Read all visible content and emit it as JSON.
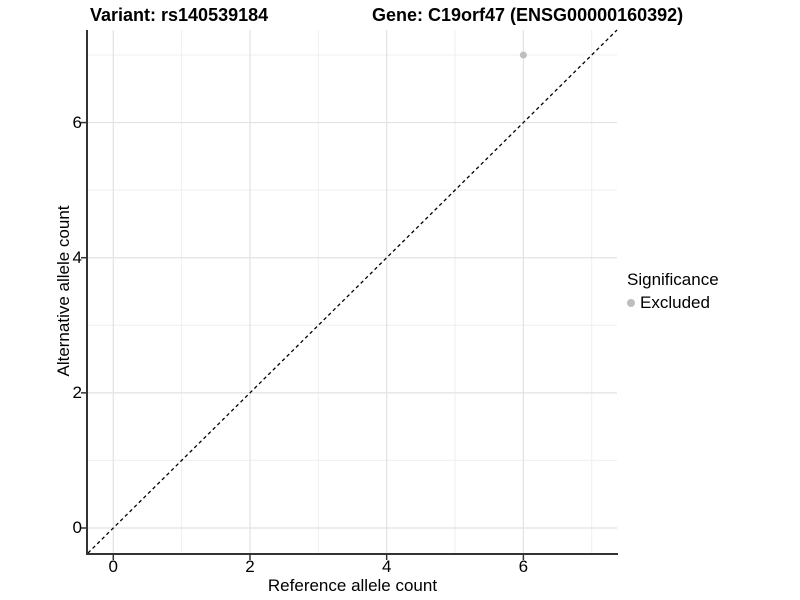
{
  "titles": {
    "variant": "Variant: rs140539184",
    "gene": "Gene: C19orf47 (ENSG00000160392)"
  },
  "chart_data": {
    "type": "scatter",
    "title": "Variant: rs140539184   Gene: C19orf47 (ENSG00000160392)",
    "xlabel": "Reference allele count",
    "ylabel": "Alternative allele count",
    "xlim": [
      -0.37,
      7.37
    ],
    "ylim": [
      -0.37,
      7.37
    ],
    "xticks": [
      0,
      2,
      4,
      6
    ],
    "yticks": [
      0,
      2,
      4,
      6
    ],
    "minor_gridlines_x": [
      1,
      3,
      5,
      7
    ],
    "minor_gridlines_y": [
      1,
      3,
      5,
      7
    ],
    "grid": true,
    "series": [
      {
        "name": "Excluded",
        "color": "#bebebe",
        "points": [
          {
            "x": 6,
            "y": 7
          }
        ]
      }
    ],
    "reference_line": {
      "type": "identity y = x",
      "style": "dashed",
      "color": "#000000"
    },
    "legend": {
      "title": "Significance",
      "position": "right",
      "entries": [
        {
          "label": "Excluded",
          "color": "#bebebe",
          "marker": "circle"
        }
      ]
    }
  },
  "colors": {
    "background": "#ffffff",
    "grid_major": "#e2e2e2",
    "grid_minor": "#efefef",
    "axis_line": "#333333",
    "tick_mark": "#333333",
    "point": "#bebebe",
    "text": "#000000"
  }
}
